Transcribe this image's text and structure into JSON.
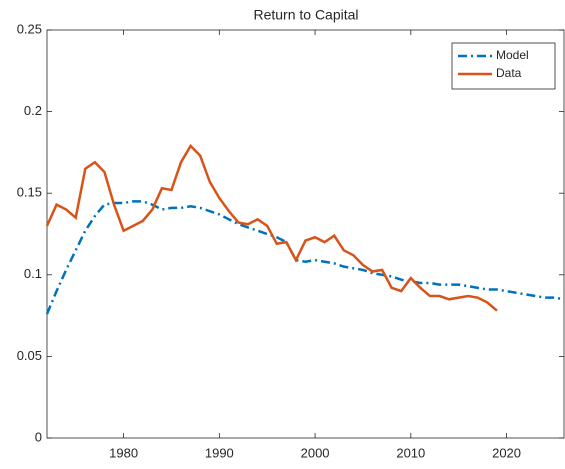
{
  "chart_data": {
    "type": "line",
    "title": "Return to Capital",
    "x": [
      1972,
      1973,
      1974,
      1975,
      1976,
      1977,
      1978,
      1979,
      1980,
      1981,
      1982,
      1983,
      1984,
      1985,
      1986,
      1987,
      1988,
      1989,
      1990,
      1991,
      1992,
      1993,
      1994,
      1995,
      1996,
      1997,
      1998,
      1999,
      2000,
      2001,
      2002,
      2003,
      2004,
      2005,
      2006,
      2007,
      2008,
      2009,
      2010,
      2011,
      2012,
      2013,
      2014,
      2015,
      2016,
      2017,
      2018,
      2019,
      2020,
      2021,
      2022,
      2023,
      2024,
      2025,
      2026
    ],
    "series": [
      {
        "name": "Model",
        "color": "#0072bd",
        "dash": "dashdot",
        "values": [
          0.076,
          0.09,
          0.103,
          0.115,
          0.127,
          0.136,
          0.143,
          0.144,
          0.144,
          0.145,
          0.145,
          0.143,
          0.14,
          0.141,
          0.141,
          0.142,
          0.141,
          0.139,
          0.137,
          0.134,
          0.131,
          0.129,
          0.127,
          0.125,
          0.123,
          0.12,
          0.109,
          0.108,
          0.109,
          0.108,
          0.107,
          0.105,
          0.104,
          0.103,
          0.101,
          0.1,
          0.099,
          0.097,
          0.096,
          0.095,
          0.095,
          0.094,
          0.094,
          0.094,
          0.093,
          0.092,
          0.091,
          0.091,
          0.09,
          0.089,
          0.088,
          0.087,
          0.086,
          0.086,
          0.085
        ]
      },
      {
        "name": "Data",
        "color": "#d95319",
        "dash": "solid",
        "values": [
          0.13,
          0.143,
          0.14,
          0.135,
          0.165,
          0.169,
          0.163,
          0.143,
          0.127,
          0.13,
          0.133,
          0.14,
          0.153,
          0.152,
          0.169,
          0.179,
          0.173,
          0.157,
          0.147,
          0.139,
          0.132,
          0.131,
          0.134,
          0.13,
          0.119,
          0.12,
          0.109,
          0.121,
          0.123,
          0.12,
          0.124,
          0.115,
          0.112,
          0.106,
          0.102,
          0.103,
          0.092,
          0.09,
          0.098,
          0.092,
          0.087,
          0.087,
          0.085,
          0.086,
          0.087,
          0.086,
          0.083,
          0.078,
          null,
          null,
          null,
          null,
          null,
          null,
          null
        ]
      }
    ],
    "xlim": [
      1972,
      2026
    ],
    "ylim": [
      0,
      0.25
    ],
    "xticks": [
      1980,
      1990,
      2000,
      2010,
      2020
    ],
    "yticks": [
      0,
      0.05,
      0.1,
      0.15,
      0.2,
      0.25
    ],
    "legend": "upper right"
  }
}
